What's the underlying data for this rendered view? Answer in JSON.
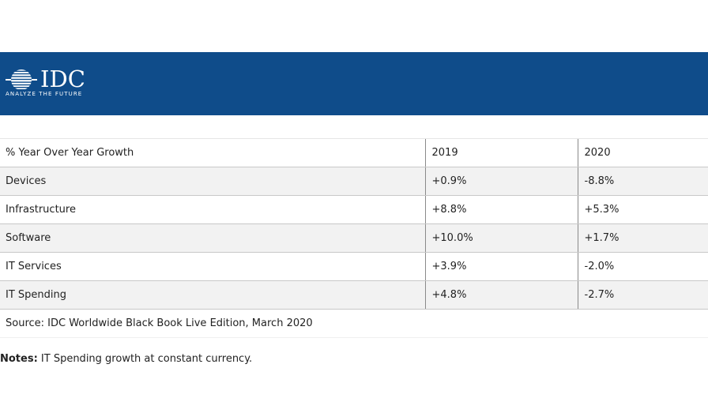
{
  "brand": {
    "name": "IDC",
    "tagline": "ANALYZE THE FUTURE",
    "banner_color": "#0f4c8a",
    "logo_icon": "globe-lines-icon"
  },
  "table": {
    "header": {
      "label": "% Year Over Year Growth",
      "y2019": "2019",
      "y2020": "2020"
    },
    "rows": [
      {
        "label": "Devices",
        "y2019": "+0.9%",
        "y2020": "-8.8%"
      },
      {
        "label": "Infrastructure",
        "y2019": "+8.8%",
        "y2020": "+5.3%"
      },
      {
        "label": "Software",
        "y2019": "+10.0%",
        "y2020": "+1.7%"
      },
      {
        "label": "IT Services",
        "y2019": "+3.9%",
        "y2020": "-2.0%"
      },
      {
        "label": "IT Spending",
        "y2019": "+4.8%",
        "y2020": "-2.7%"
      }
    ],
    "source": "Source: IDC Worldwide Black Book Live Edition, March 2020"
  },
  "notes": {
    "label": "Notes:",
    "text": " IT Spending growth at constant currency."
  }
}
